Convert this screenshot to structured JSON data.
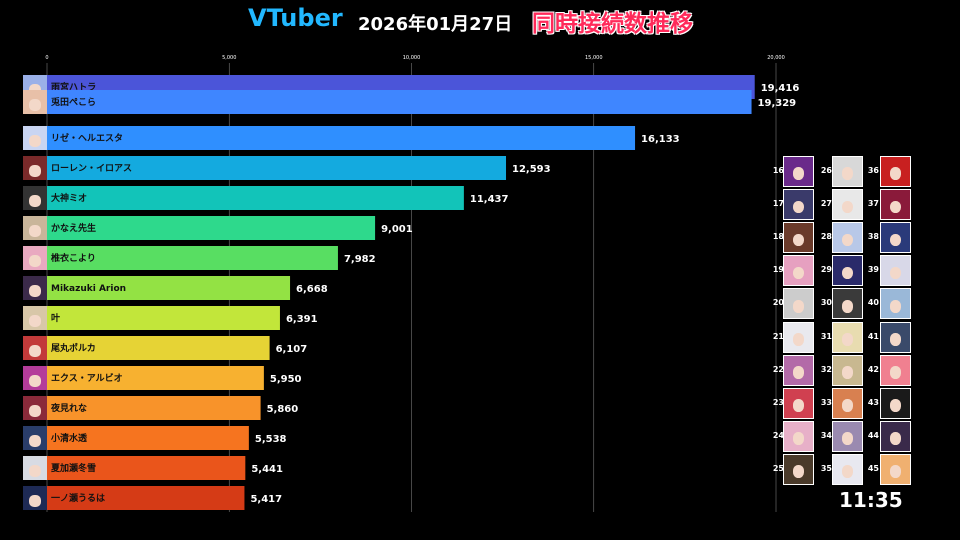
{
  "header": {
    "brand": "VTuber",
    "date": "2026年01月27日",
    "subtitle": "同時接続数推移"
  },
  "chart_data": {
    "type": "bar",
    "orientation": "horizontal",
    "axis": {
      "min": 0,
      "max": 20000,
      "ticks": [
        0,
        5000,
        10000,
        15000,
        20000
      ],
      "tick_labels": [
        "0",
        "5,000",
        "10,000",
        "15,000",
        "20,000"
      ]
    },
    "grid": true,
    "categories": [
      "雨宮ハトラ",
      "兎田ぺこら",
      "リゼ・ヘルエスタ",
      "ローレン・イロアス",
      "大神ミオ",
      "かなえ先生",
      "椎衣こより",
      "Mikazuki Arion",
      "叶",
      "尾丸ポルカ",
      "エクス・アルビオ",
      "夜見れな",
      "小清水透",
      "夏加瀬冬雪",
      "一ノ瀬うるは"
    ],
    "values": [
      19416,
      19329,
      16133,
      12593,
      11437,
      9001,
      7982,
      6668,
      6391,
      6107,
      5950,
      5860,
      5538,
      5441,
      5417
    ],
    "value_labels": [
      "19,416",
      "19,329",
      "16,133",
      "12,593",
      "11,437",
      "9,001",
      "7,982",
      "6,668",
      "6,391",
      "6,107",
      "5,950",
      "5,860",
      "5,538",
      "5,441",
      "5,417"
    ],
    "colors": [
      "#4b55d9",
      "#3f86ff",
      "#2f8fff",
      "#14aadf",
      "#12c4b9",
      "#2ed98c",
      "#58de62",
      "#93e244",
      "#c2e63a",
      "#e6d335",
      "#f7b130",
      "#f8932a",
      "#f6741f",
      "#ea551b",
      "#d53b16"
    ],
    "avatar_colors": [
      "#9ab0e8",
      "#e8c0a8",
      "#c9d5f2",
      "#7a2a2a",
      "#333333",
      "#c9b59a",
      "#e9a9c0",
      "#3b2a4a",
      "#d8c7a8",
      "#c23a3a",
      "#b43c9a",
      "#8a2a3a",
      "#2a3d6a",
      "#d8dbe3",
      "#1e2a55"
    ]
  },
  "ranking_grid": {
    "ranks": [
      "16",
      "17",
      "18",
      "19",
      "20",
      "21",
      "22",
      "23",
      "24",
      "25",
      "26",
      "27",
      "28",
      "29",
      "30",
      "31",
      "32",
      "33",
      "34",
      "35",
      "36",
      "37",
      "38",
      "39",
      "40",
      "41",
      "42",
      "43",
      "44",
      "45"
    ],
    "hair_colors": [
      "#6a2a8a",
      "#3a3a6a",
      "#6a3a2a",
      "#e6a0c0",
      "#cccccc",
      "#e9e9ee",
      "#b36aa8",
      "#d04050",
      "#e7b0c8",
      "#4a3a2a",
      "#d8d8d8",
      "#e8e8e8",
      "#b8c8e8",
      "#2a2a6a",
      "#3a3a3a",
      "#e8dcb0",
      "#c8b890",
      "#d88050",
      "#9a8ab0",
      "#e8e8f0",
      "#c82020",
      "#8a1a3a",
      "#2a3a7a",
      "#d8d8e8",
      "#9ab8d8",
      "#3a4a6a",
      "#f08090",
      "#1a1a1a",
      "#3a2a4a",
      "#f0b070"
    ]
  },
  "clock": "11:35"
}
